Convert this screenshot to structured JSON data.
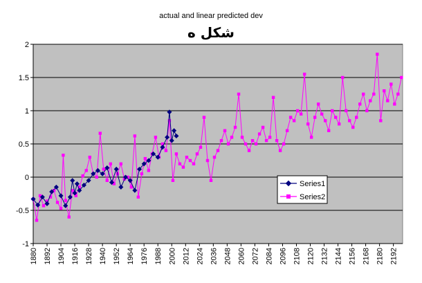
{
  "chart_data": {
    "type": "line",
    "title": "شکل ه",
    "subtitle": "actual and linear predicted dev",
    "xlabel": "",
    "ylabel": "",
    "ylim": [
      -1,
      2
    ],
    "yticks": [
      "-1",
      "-0.5",
      "0",
      "0.5",
      "1",
      "1.5",
      "2"
    ],
    "xlim": [
      1880,
      2200
    ],
    "xticks": [
      "1880",
      "1892",
      "1904",
      "1916",
      "1928",
      "1940",
      "1952",
      "1964",
      "1976",
      "1988",
      "2000",
      "2012",
      "2024",
      "2036",
      "2048",
      "2060",
      "2072",
      "2084",
      "2096",
      "2108",
      "2120",
      "2132",
      "2144",
      "2156",
      "2168",
      "2180",
      "2192"
    ],
    "grid": "horizontal",
    "legend": "center-right",
    "colors": {
      "series1": "#000080",
      "series2": "#ff00ff",
      "plot_bg": "#c0c0c0"
    },
    "series": [
      {
        "name": "Series1",
        "x": [
          1880,
          1884,
          1888,
          1892,
          1896,
          1900,
          1904,
          1908,
          1912,
          1914,
          1916,
          1918,
          1920,
          1924,
          1928,
          1932,
          1936,
          1940,
          1944,
          1948,
          1952,
          1956,
          1960,
          1964,
          1968,
          1972,
          1976,
          1980,
          1984,
          1988,
          1992,
          1996,
          1998,
          2000,
          2002,
          2004
        ],
        "values": [
          -0.33,
          -0.42,
          -0.3,
          -0.4,
          -0.22,
          -0.15,
          -0.28,
          -0.43,
          -0.3,
          -0.05,
          -0.24,
          -0.1,
          -0.2,
          -0.12,
          -0.05,
          0.05,
          0.1,
          0.05,
          0.14,
          -0.08,
          0.12,
          -0.15,
          0.0,
          -0.05,
          -0.2,
          0.12,
          0.2,
          0.25,
          0.35,
          0.3,
          0.45,
          0.6,
          0.98,
          0.55,
          0.7,
          0.62
        ]
      },
      {
        "name": "Series2",
        "x": [
          1880,
          1883,
          1886,
          1889,
          1892,
          1895,
          1898,
          1901,
          1904,
          1906,
          1908,
          1911,
          1914,
          1917,
          1920,
          1923,
          1926,
          1929,
          1932,
          1935,
          1938,
          1941,
          1944,
          1947,
          1950,
          1953,
          1956,
          1959,
          1962,
          1965,
          1968,
          1971,
          1974,
          1977,
          1980,
          1983,
          1986,
          1989,
          1992,
          1995,
          1998,
          2001,
          2004,
          2007,
          2010,
          2013,
          2016,
          2019,
          2022,
          2025,
          2028,
          2031,
          2034,
          2037,
          2040,
          2043,
          2046,
          2049,
          2052,
          2055,
          2058,
          2061,
          2064,
          2067,
          2070,
          2073,
          2076,
          2079,
          2082,
          2085,
          2088,
          2091,
          2094,
          2097,
          2100,
          2103,
          2106,
          2109,
          2112,
          2115,
          2118,
          2121,
          2124,
          2127,
          2130,
          2133,
          2136,
          2139,
          2142,
          2145,
          2148,
          2151,
          2154,
          2157,
          2160,
          2163,
          2166,
          2169,
          2172,
          2175,
          2178,
          2181,
          2184,
          2187,
          2190,
          2193,
          2196,
          2199
        ],
        "values": [
          -0.33,
          -0.65,
          -0.28,
          -0.43,
          -0.36,
          -0.3,
          -0.2,
          -0.38,
          -0.47,
          0.33,
          -0.35,
          -0.6,
          -0.2,
          -0.28,
          -0.15,
          0.02,
          0.1,
          0.3,
          0.05,
          0.0,
          0.66,
          0.12,
          -0.05,
          0.2,
          -0.1,
          0.05,
          0.2,
          -0.03,
          0.0,
          -0.15,
          0.62,
          -0.3,
          0.05,
          0.28,
          0.1,
          0.35,
          0.6,
          0.3,
          0.5,
          0.4,
          0.85,
          -0.05,
          0.35,
          0.2,
          0.15,
          0.3,
          0.25,
          0.2,
          0.35,
          0.45,
          0.9,
          0.25,
          -0.05,
          0.3,
          0.4,
          0.55,
          0.7,
          0.5,
          0.6,
          0.75,
          1.25,
          0.6,
          0.5,
          0.4,
          0.55,
          0.5,
          0.65,
          0.75,
          0.55,
          0.6,
          1.2,
          0.55,
          0.4,
          0.5,
          0.7,
          0.9,
          0.85,
          1.0,
          0.95,
          1.55,
          0.8,
          0.6,
          0.9,
          1.1,
          0.95,
          0.85,
          0.7,
          1.0,
          0.9,
          0.8,
          1.5,
          1.0,
          0.85,
          0.75,
          0.9,
          1.1,
          1.25,
          1.0,
          1.15,
          1.25,
          1.85,
          0.85,
          1.3,
          1.15,
          1.4,
          1.1,
          1.25,
          1.5
        ]
      }
    ]
  }
}
